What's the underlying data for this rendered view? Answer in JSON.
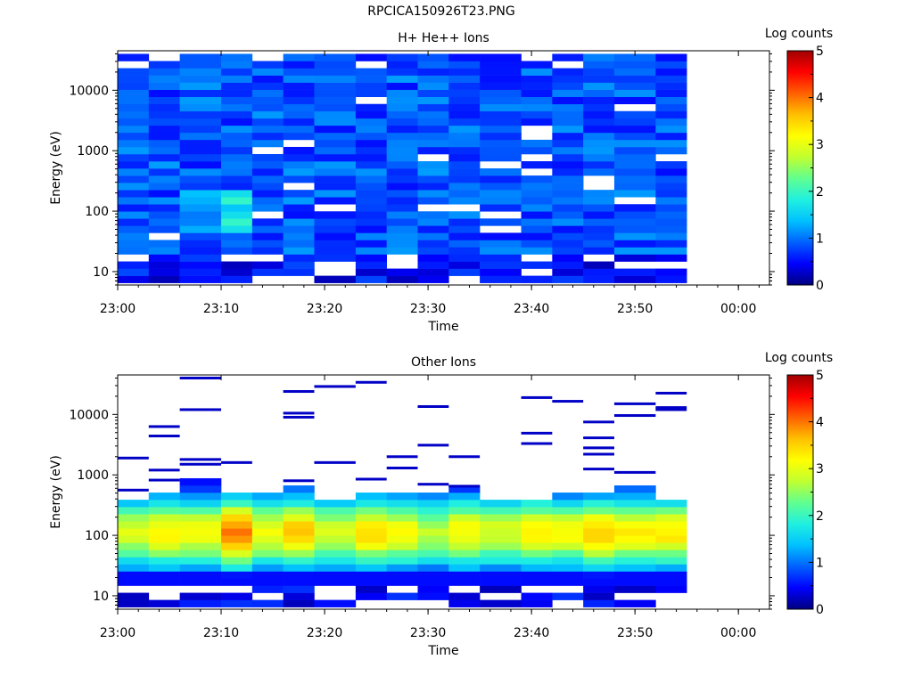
{
  "figure": {
    "title": "RPCICA150926T23.PNG"
  },
  "colorscale": {
    "stops": [
      "#000080",
      "#0000ff",
      "#0060ff",
      "#00c0ff",
      "#20f0e0",
      "#60ff90",
      "#c0ff30",
      "#ffff00",
      "#ffc000",
      "#ff6000",
      "#ff0000",
      "#a00000"
    ]
  },
  "chart_data": [
    {
      "type": "heatmap",
      "title": "H+ He++ Ions",
      "xlabel": "Time",
      "ylabel": "Energy (eV)",
      "yscale": "log",
      "ylim": [
        6,
        45000
      ],
      "xlim": [
        "23:00",
        "00:03"
      ],
      "xticks": [
        "23:00",
        "23:10",
        "23:20",
        "23:30",
        "23:40",
        "23:50",
        "00:00"
      ],
      "yticks": [
        "10",
        "100",
        "1000",
        "10000"
      ],
      "colorbar": {
        "label": "Log counts",
        "range": [
          0,
          5
        ],
        "ticks": [
          "0",
          "1",
          "2",
          "3",
          "4",
          "5"
        ]
      },
      "time_bins": [
        "23:00",
        "23:03",
        "23:06",
        "23:10",
        "23:13",
        "23:16",
        "23:19",
        "23:23",
        "23:26",
        "23:29",
        "23:32",
        "23:35",
        "23:39",
        "23:42",
        "23:45",
        "23:48",
        "23:52"
      ],
      "data_end_time": "23:55",
      "description_of_values": "Mostly 0.5-1.2 log counts across 10 eV - 40 keV; slight enhancement ~1.5-2 near 50-120 eV at 23:10-23:13",
      "peak_log_counts": 2.0
    },
    {
      "type": "heatmap",
      "title": "Other Ions",
      "xlabel": "Time",
      "ylabel": "Energy (eV)",
      "yscale": "log",
      "ylim": [
        6,
        45000
      ],
      "xlim": [
        "23:00",
        "00:03"
      ],
      "xticks": [
        "23:00",
        "23:10",
        "23:20",
        "23:30",
        "23:40",
        "23:50",
        "00:00"
      ],
      "yticks": [
        "10",
        "100",
        "1000",
        "10000"
      ],
      "colorbar": {
        "label": "Log counts",
        "range": [
          0,
          5
        ],
        "ticks": [
          "0",
          "1",
          "2",
          "3",
          "4",
          "5"
        ]
      },
      "time_bins": [
        "23:00",
        "23:03",
        "23:06",
        "23:10",
        "23:13",
        "23:16",
        "23:19",
        "23:23",
        "23:26",
        "23:29",
        "23:32",
        "23:35",
        "23:39",
        "23:42",
        "23:45",
        "23:48",
        "23:52"
      ],
      "data_end_time": "23:55",
      "band_peak_log_counts": [
        2.8,
        3.1,
        3.0,
        3.9,
        3.0,
        3.5,
        2.8,
        3.3,
        3.0,
        2.6,
        3.1,
        2.8,
        3.2,
        3.0,
        3.4,
        3.2,
        3.2
      ],
      "band_top_eV": [
        400,
        500,
        900,
        450,
        500,
        600,
        420,
        500,
        550,
        480,
        600,
        400,
        380,
        500,
        550,
        600,
        400
      ],
      "sparse_high_energy_eV": [
        [
          1900,
          560
        ],
        [
          6300,
          4400,
          1200,
          820
        ],
        [
          40000,
          12000,
          1800,
          1500
        ],
        [
          1600
        ],
        [],
        [
          24000,
          10500,
          9000,
          800
        ],
        [
          29000,
          1600
        ],
        [
          34000,
          850
        ],
        [
          2000,
          1300
        ],
        [
          13500,
          3100,
          700
        ],
        [
          2000,
          650
        ],
        [],
        [
          19000,
          4900,
          3300
        ],
        [
          16500
        ],
        [
          7500,
          4100,
          2800,
          2200,
          1250
        ],
        [
          15000,
          9600,
          1100
        ],
        [
          22500,
          13000,
          12000
        ]
      ]
    }
  ]
}
